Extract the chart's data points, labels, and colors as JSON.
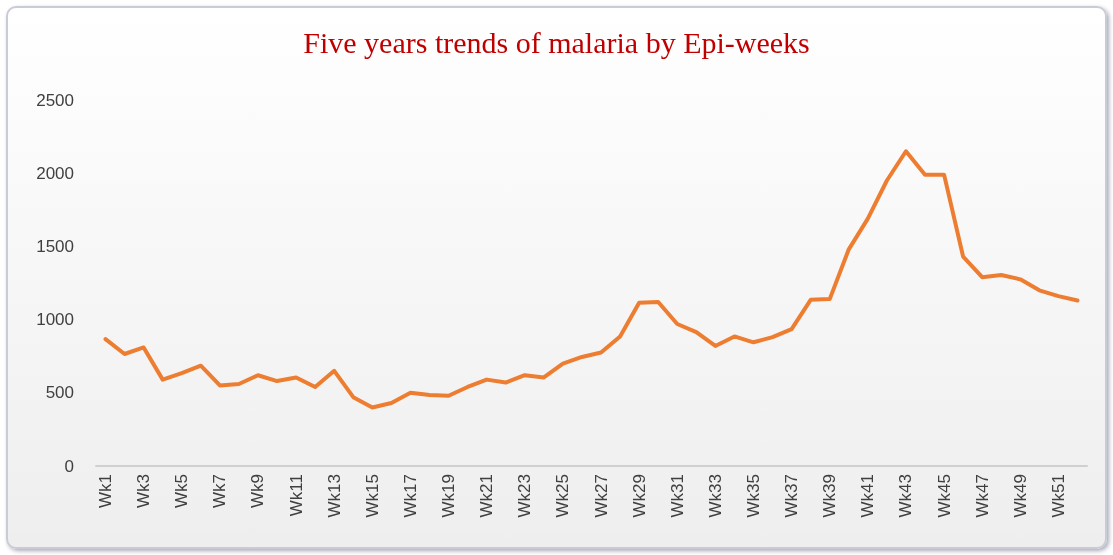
{
  "chart_data": {
    "type": "line",
    "title": "Five years trends of malaria by Epi-weeks",
    "categories": [
      "Wk1",
      null,
      "Wk3",
      null,
      "Wk5",
      null,
      "Wk7",
      null,
      "Wk9",
      null,
      "Wk11",
      null,
      "Wk13",
      null,
      "Wk15",
      null,
      "Wk17",
      null,
      "Wk19",
      null,
      "Wk21",
      null,
      "Wk23",
      null,
      "Wk25",
      null,
      "Wk27",
      null,
      "Wk29",
      null,
      "Wk31",
      null,
      "Wk33",
      null,
      "Wk35",
      null,
      "Wk37",
      null,
      "Wk39",
      null,
      "Wk41",
      null,
      "Wk43",
      null,
      "Wk45",
      null,
      "Wk47",
      null,
      "Wk49",
      null,
      "Wk51",
      null
    ],
    "series": [
      {
        "color": "#ed7d31",
        "values": [
          867,
          765,
          810,
          590,
          635,
          685,
          550,
          560,
          620,
          580,
          605,
          540,
          650,
          470,
          400,
          430,
          500,
          485,
          480,
          540,
          590,
          570,
          620,
          605,
          700,
          745,
          775,
          885,
          1115,
          1120,
          970,
          915,
          820,
          885,
          845,
          880,
          935,
          1135,
          1140,
          1480,
          1690,
          1950,
          2150,
          1990,
          1990,
          1430,
          1290,
          1305,
          1275,
          1200,
          1160,
          1130
        ]
      }
    ],
    "ylim": [
      0,
      2500
    ],
    "yticks": [
      0,
      500,
      1000,
      1500,
      2000,
      2500
    ],
    "grid": false,
    "marker": "none",
    "line_style": "solid"
  }
}
